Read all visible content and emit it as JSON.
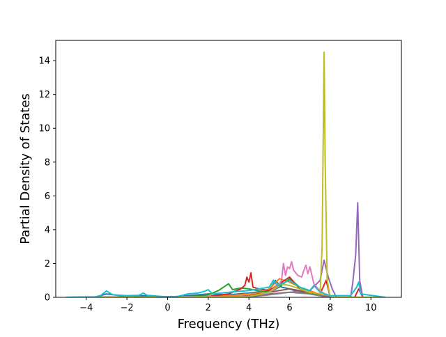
{
  "chart_data": {
    "type": "line",
    "title": "",
    "xlabel": "Frequency (THz)",
    "ylabel": "Partial Density of States",
    "xlim": [
      -5.5,
      11.5
    ],
    "ylim": [
      0,
      15.2
    ],
    "xticks": [
      -4,
      -2,
      0,
      2,
      4,
      6,
      8,
      10
    ],
    "yticks": [
      0,
      2,
      4,
      6,
      8,
      10,
      12,
      14
    ],
    "xtick_labels": [
      "−4",
      "−2",
      "0",
      "2",
      "4",
      "6",
      "8",
      "10"
    ],
    "ytick_labels": [
      "0",
      "2",
      "4",
      "6",
      "8",
      "10",
      "12",
      "14"
    ],
    "grid": false,
    "legend": "none",
    "series": [
      {
        "color": "#1f77b4",
        "points": [
          [
            -5.0,
            0
          ],
          [
            -3.6,
            0
          ],
          [
            -3.0,
            0.2
          ],
          [
            -2.0,
            0.05
          ],
          [
            -1.2,
            0.1
          ],
          [
            0,
            0
          ],
          [
            1.0,
            0.1
          ],
          [
            2.0,
            0.2
          ],
          [
            3.0,
            0.15
          ],
          [
            4.0,
            0.25
          ],
          [
            5.0,
            0.4
          ],
          [
            5.3,
            1.0
          ],
          [
            5.6,
            0.6
          ],
          [
            6.0,
            0.5
          ],
          [
            6.5,
            0.3
          ],
          [
            7.0,
            0.2
          ],
          [
            7.5,
            0.1
          ],
          [
            8.0,
            0
          ],
          [
            10.7,
            0
          ]
        ]
      },
      {
        "color": "#ff7f0e",
        "points": [
          [
            -5.0,
            0
          ],
          [
            1.0,
            0
          ],
          [
            2.0,
            0.05
          ],
          [
            3.0,
            0.1
          ],
          [
            4.0,
            0.2
          ],
          [
            4.5,
            0.25
          ],
          [
            5.0,
            0.5
          ],
          [
            5.5,
            1.1
          ],
          [
            6.0,
            0.9
          ],
          [
            6.5,
            0.6
          ],
          [
            7.0,
            0.4
          ],
          [
            7.4,
            0.2
          ],
          [
            7.8,
            0.1
          ],
          [
            8.0,
            0
          ],
          [
            10.7,
            0
          ]
        ]
      },
      {
        "color": "#2ca02c",
        "points": [
          [
            -5.0,
            0
          ],
          [
            1.0,
            0.02
          ],
          [
            2.0,
            0.15
          ],
          [
            2.5,
            0.4
          ],
          [
            3.0,
            0.8
          ],
          [
            3.2,
            0.45
          ],
          [
            3.6,
            0.55
          ],
          [
            4.0,
            0.5
          ],
          [
            4.4,
            0.4
          ],
          [
            5.0,
            0.3
          ],
          [
            5.5,
            0.6
          ],
          [
            6.0,
            1.1
          ],
          [
            6.5,
            0.6
          ],
          [
            7.0,
            0.3
          ],
          [
            7.5,
            0.1
          ],
          [
            8.0,
            0
          ],
          [
            10.7,
            0
          ]
        ]
      },
      {
        "color": "#d62728",
        "points": [
          [
            -5.0,
            0
          ],
          [
            2.0,
            0.05
          ],
          [
            3.0,
            0.2
          ],
          [
            3.6,
            0.5
          ],
          [
            3.8,
            0.7
          ],
          [
            3.9,
            1.2
          ],
          [
            4.0,
            0.9
          ],
          [
            4.1,
            1.45
          ],
          [
            4.2,
            0.6
          ],
          [
            4.5,
            0.5
          ],
          [
            5.0,
            0.4
          ],
          [
            5.5,
            0.8
          ],
          [
            6.0,
            1.2
          ],
          [
            6.5,
            0.5
          ],
          [
            7.0,
            0.3
          ],
          [
            7.5,
            0.2
          ],
          [
            7.8,
            1.0
          ],
          [
            8.0,
            0
          ],
          [
            9.2,
            0
          ],
          [
            9.4,
            0.5
          ],
          [
            9.6,
            0
          ],
          [
            10.7,
            0
          ]
        ]
      },
      {
        "color": "#9467bd",
        "points": [
          [
            -5.0,
            0
          ],
          [
            4.0,
            0.05
          ],
          [
            5.0,
            0.2
          ],
          [
            6.0,
            0.3
          ],
          [
            7.0,
            0.4
          ],
          [
            7.5,
            1.0
          ],
          [
            7.7,
            2.2
          ],
          [
            7.9,
            1.2
          ],
          [
            8.1,
            0.5
          ],
          [
            8.3,
            0
          ],
          [
            9.0,
            0
          ],
          [
            9.1,
            0.8
          ],
          [
            9.25,
            2.5
          ],
          [
            9.35,
            5.6
          ],
          [
            9.45,
            1.0
          ],
          [
            9.6,
            0
          ],
          [
            10.7,
            0
          ]
        ]
      },
      {
        "color": "#8c564b",
        "points": [
          [
            -5.0,
            0
          ],
          [
            3.0,
            0.02
          ],
          [
            4.0,
            0.1
          ],
          [
            5.0,
            0.3
          ],
          [
            5.5,
            0.4
          ],
          [
            6.0,
            0.5
          ],
          [
            6.5,
            0.4
          ],
          [
            7.0,
            0.2
          ],
          [
            7.5,
            0.1
          ],
          [
            8.0,
            0
          ],
          [
            10.7,
            0
          ]
        ]
      },
      {
        "color": "#e377c2",
        "points": [
          [
            -5.0,
            0
          ],
          [
            4.0,
            0.05
          ],
          [
            5.0,
            0.3
          ],
          [
            5.4,
            0.6
          ],
          [
            5.6,
            1.0
          ],
          [
            5.7,
            2.0
          ],
          [
            5.8,
            1.3
          ],
          [
            5.9,
            1.8
          ],
          [
            6.0,
            1.7
          ],
          [
            6.1,
            2.1
          ],
          [
            6.2,
            1.6
          ],
          [
            6.4,
            1.3
          ],
          [
            6.6,
            1.2
          ],
          [
            6.7,
            1.6
          ],
          [
            6.8,
            1.9
          ],
          [
            6.9,
            1.4
          ],
          [
            7.0,
            1.8
          ],
          [
            7.2,
            0.8
          ],
          [
            7.4,
            0.5
          ],
          [
            7.6,
            0.3
          ],
          [
            8.0,
            0
          ],
          [
            10.7,
            0
          ]
        ]
      },
      {
        "color": "#7f7f7f",
        "points": [
          [
            -5.0,
            0
          ],
          [
            4.0,
            0.02
          ],
          [
            5.0,
            0.15
          ],
          [
            6.0,
            0.3
          ],
          [
            7.0,
            0.2
          ],
          [
            7.5,
            0.1
          ],
          [
            8.0,
            0
          ],
          [
            10.7,
            0
          ]
        ]
      },
      {
        "color": "#bcbd22",
        "points": [
          [
            -5.0,
            0
          ],
          [
            4.0,
            0.05
          ],
          [
            5.0,
            0.3
          ],
          [
            5.5,
            0.8
          ],
          [
            6.0,
            0.7
          ],
          [
            6.5,
            0.5
          ],
          [
            7.0,
            0.3
          ],
          [
            7.5,
            0.2
          ],
          [
            7.6,
            3.0
          ],
          [
            7.7,
            14.5
          ],
          [
            7.75,
            8.0
          ],
          [
            7.85,
            1.0
          ],
          [
            8.0,
            0
          ],
          [
            10.7,
            0
          ]
        ]
      },
      {
        "color": "#17becf",
        "points": [
          [
            -5.0,
            0
          ],
          [
            -3.6,
            0
          ],
          [
            -3.3,
            0.1
          ],
          [
            -3.0,
            0.38
          ],
          [
            -2.7,
            0.15
          ],
          [
            -2.0,
            0.1
          ],
          [
            -1.4,
            0.12
          ],
          [
            -1.2,
            0.25
          ],
          [
            -1.0,
            0.12
          ],
          [
            0,
            0.02
          ],
          [
            0.5,
            0.05
          ],
          [
            1.0,
            0.2
          ],
          [
            1.5,
            0.25
          ],
          [
            1.8,
            0.35
          ],
          [
            2.0,
            0.45
          ],
          [
            2.2,
            0.2
          ],
          [
            3.0,
            0.3
          ],
          [
            3.5,
            0.35
          ],
          [
            4.0,
            0.4
          ],
          [
            4.5,
            0.5
          ],
          [
            5.0,
            0.6
          ],
          [
            5.2,
            1.0
          ],
          [
            5.4,
            0.7
          ],
          [
            6.0,
            1.0
          ],
          [
            6.5,
            0.6
          ],
          [
            7.0,
            0.4
          ],
          [
            7.2,
            0.7
          ],
          [
            7.5,
            0.3
          ],
          [
            8.0,
            0.1
          ],
          [
            9.0,
            0.1
          ],
          [
            9.3,
            0.6
          ],
          [
            9.4,
            0.9
          ],
          [
            9.5,
            0.2
          ],
          [
            10.7,
            0
          ]
        ]
      }
    ]
  }
}
